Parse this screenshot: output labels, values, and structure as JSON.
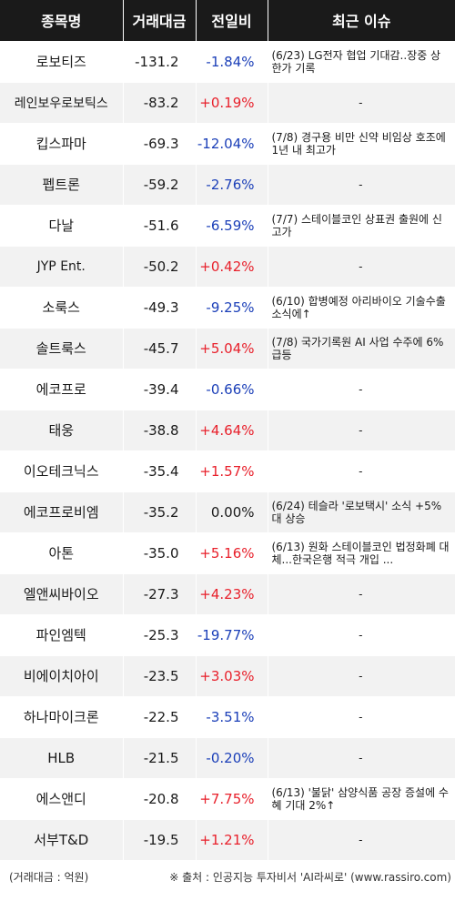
{
  "table": {
    "headers": [
      "종목명",
      "거래대금",
      "전일비",
      "최근 이슈"
    ],
    "rows": [
      {
        "name": "로보티즈",
        "amount": "-131.2",
        "change": "-1.84%",
        "dir": "down",
        "news": "(6/23) LG전자 협업 기대감..장중 상한가 기록"
      },
      {
        "name": "레인보우로보틱스",
        "amount": "-83.2",
        "change": "+0.19%",
        "dir": "up",
        "news": "-"
      },
      {
        "name": "킵스파마",
        "amount": "-69.3",
        "change": "-12.04%",
        "dir": "down",
        "news": "(7/8) 경구용 비만 신약 비임상 호조에 1년 내 최고가"
      },
      {
        "name": "펩트론",
        "amount": "-59.2",
        "change": "-2.76%",
        "dir": "down",
        "news": "-"
      },
      {
        "name": "다날",
        "amount": "-51.6",
        "change": "-6.59%",
        "dir": "down",
        "news": "(7/7) 스테이블코인 상표권 출원에 신고가"
      },
      {
        "name": "JYP Ent.",
        "amount": "-50.2",
        "change": "+0.42%",
        "dir": "up",
        "news": "-"
      },
      {
        "name": "소룩스",
        "amount": "-49.3",
        "change": "-9.25%",
        "dir": "down",
        "news": "(6/10) 합병예정 아리바이오 기술수출 소식에↑"
      },
      {
        "name": "솔트룩스",
        "amount": "-45.7",
        "change": "+5.04%",
        "dir": "up",
        "news": "(7/8) 국가기록원 AI 사업 수주에 6% 급등"
      },
      {
        "name": "에코프로",
        "amount": "-39.4",
        "change": "-0.66%",
        "dir": "down",
        "news": "-"
      },
      {
        "name": "태웅",
        "amount": "-38.8",
        "change": "+4.64%",
        "dir": "up",
        "news": "-"
      },
      {
        "name": "이오테크닉스",
        "amount": "-35.4",
        "change": "+1.57%",
        "dir": "up",
        "news": "-"
      },
      {
        "name": "에코프로비엠",
        "amount": "-35.2",
        "change": "0.00%",
        "dir": "flat",
        "news": "(6/24) 테슬라 '로보택시' 소식 +5%대 상승"
      },
      {
        "name": "아톤",
        "amount": "-35.0",
        "change": "+5.16%",
        "dir": "up",
        "news": "(6/13) 원화 스테이블코인 법정화폐 대체...한국은행 적극 개입 ..."
      },
      {
        "name": "엘앤씨바이오",
        "amount": "-27.3",
        "change": "+4.23%",
        "dir": "up",
        "news": "-"
      },
      {
        "name": "파인엠텍",
        "amount": "-25.3",
        "change": "-19.77%",
        "dir": "down",
        "news": "-"
      },
      {
        "name": "비에이치아이",
        "amount": "-23.5",
        "change": "+3.03%",
        "dir": "up",
        "news": "-"
      },
      {
        "name": "하나마이크론",
        "amount": "-22.5",
        "change": "-3.51%",
        "dir": "down",
        "news": "-"
      },
      {
        "name": "HLB",
        "amount": "-21.5",
        "change": "-0.20%",
        "dir": "down",
        "news": "-"
      },
      {
        "name": "에스앤디",
        "amount": "-20.8",
        "change": "+7.75%",
        "dir": "up",
        "news": "(6/13) '불닭' 삼양식품 공장 증설에 수혜 기대 2%↑"
      },
      {
        "name": "서부T&D",
        "amount": "-19.5",
        "change": "+1.21%",
        "dir": "up",
        "news": "-"
      }
    ]
  },
  "footer": {
    "unit": "(거래대금 : 억원)",
    "source": "※ 출처 : 인공지능 투자비서 'AI라씨로' (www.rassiro.com)"
  },
  "colors": {
    "header_bg": "#1a1a1a",
    "stripe_bg": "#f2f2f2",
    "up": "#e8202b",
    "down": "#1b3fb8"
  }
}
